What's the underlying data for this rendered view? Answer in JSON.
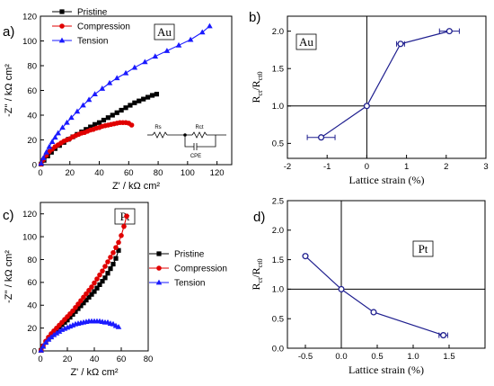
{
  "chart_data": [
    {
      "panel": "a)",
      "type": "scatter",
      "metal": "Au",
      "xlabel": "Z' / kΩ cm²",
      "ylabel": "-Z'' / kΩ cm²",
      "xlim": [
        0,
        130
      ],
      "ylim": [
        0,
        120
      ],
      "xticks": [
        "0",
        "20",
        "40",
        "60",
        "80",
        "100",
        "120"
      ],
      "yticks": [
        "0",
        "20",
        "40",
        "60",
        "80",
        "100",
        "120"
      ],
      "legend": {
        "position": "top-left"
      },
      "circuit": {
        "labels": [
          "Rs",
          "Rct",
          "CPE"
        ]
      },
      "series": [
        {
          "name": "Pristine",
          "color": "#000000",
          "marker": "square",
          "x": [
            0.5,
            2.5,
            5,
            7.5,
            10,
            13,
            16,
            19,
            22,
            25,
            28,
            31,
            34,
            37,
            40,
            43,
            46,
            49,
            52,
            55,
            58,
            61,
            64,
            67,
            70,
            73,
            76,
            79
          ],
          "y": [
            0.5,
            3.5,
            7,
            10,
            13,
            15.5,
            18,
            20.5,
            22.5,
            24.5,
            26.5,
            28.5,
            30.5,
            32.5,
            34,
            36,
            38,
            40,
            42,
            44,
            46,
            48,
            50,
            51.5,
            53,
            54.5,
            56,
            57
          ]
        },
        {
          "name": "Compression",
          "color": "#e00000",
          "marker": "circle",
          "x": [
            0.5,
            2,
            4,
            6,
            8,
            10,
            12,
            14,
            16,
            18,
            20,
            22,
            24,
            26,
            28,
            30,
            32,
            34,
            36,
            38,
            40,
            42,
            44,
            46,
            48,
            50,
            52,
            54,
            56,
            58,
            60,
            62
          ],
          "y": [
            0.5,
            4,
            7.5,
            10.5,
            12.5,
            14.5,
            16,
            17.5,
            19,
            20,
            21,
            22.5,
            23.5,
            24.5,
            25.5,
            26,
            27,
            28,
            28.5,
            29.5,
            30,
            31,
            31.5,
            32,
            32.5,
            33,
            33.5,
            34,
            34,
            34,
            33.5,
            32
          ]
        },
        {
          "name": "Tension",
          "color": "#1a1aff",
          "marker": "triangle",
          "x": [
            0.5,
            2,
            4,
            6,
            8,
            10,
            12,
            15,
            18,
            21,
            25,
            29,
            33,
            37,
            42,
            47,
            52,
            58,
            64,
            71,
            78,
            86,
            94,
            102,
            110,
            115
          ],
          "y": [
            1,
            5.5,
            10,
            14.5,
            18.5,
            22,
            25.5,
            30,
            34,
            38,
            43,
            48,
            52.5,
            57,
            61.5,
            66,
            70,
            74,
            78.5,
            83,
            87.5,
            92,
            96.5,
            101,
            107,
            112
          ]
        }
      ]
    },
    {
      "panel": "b)",
      "type": "line",
      "metal": "Au",
      "xlabel": "Lattice strain (%)",
      "ylabel": "Rct/Rct0",
      "xlim": [
        -2,
        3
      ],
      "ylim": [
        0.3,
        2.2
      ],
      "xticks": [
        "-2",
        "-1",
        "0",
        "1",
        "2",
        "3"
      ],
      "yticks": [
        "0.5",
        "1.0",
        "1.5",
        "2.0"
      ],
      "series": [
        {
          "name": "",
          "color": "#1f1f8f",
          "x": [
            -1.15,
            0,
            0.85,
            2.08
          ],
          "y": [
            0.58,
            1.0,
            1.83,
            2.0
          ],
          "xerr": [
            0.35,
            0,
            0.1,
            0.25
          ]
        }
      ]
    },
    {
      "panel": "c)",
      "type": "scatter",
      "metal": "Pt",
      "xlabel": "Z' / kΩ cm²",
      "ylabel": "-Z'' / kΩ cm²",
      "xlim": [
        0,
        80
      ],
      "ylim": [
        0,
        130
      ],
      "xticks": [
        "0",
        "20",
        "40",
        "60",
        "80"
      ],
      "yticks": [
        "0",
        "20",
        "40",
        "60",
        "80",
        "100",
        "120"
      ],
      "legend": {
        "position": "right"
      },
      "series": [
        {
          "name": "Pristine",
          "color": "#000000",
          "marker": "square",
          "x": [
            0.5,
            2,
            4,
            6,
            8,
            10,
            12,
            14,
            16,
            18,
            20,
            22,
            24,
            26,
            28,
            30,
            32,
            34,
            36,
            38,
            40,
            42,
            44,
            46,
            48,
            50,
            52,
            54,
            56,
            58
          ],
          "y": [
            0.5,
            4,
            7.5,
            10.5,
            13.5,
            16,
            18.5,
            21,
            23,
            25,
            27,
            29.5,
            32,
            34.5,
            37,
            39.5,
            42,
            44.5,
            47,
            49.5,
            52,
            55,
            58,
            61,
            64,
            68,
            72,
            76,
            81,
            88
          ]
        },
        {
          "name": "Compression",
          "color": "#e00000",
          "marker": "circle",
          "x": [
            0.5,
            2,
            4,
            6,
            8,
            10,
            12,
            14,
            16,
            18,
            20,
            22,
            24,
            26,
            28,
            30,
            32,
            34,
            36,
            38,
            40,
            42,
            44,
            46,
            48,
            50,
            52,
            54,
            56,
            58,
            60,
            62,
            64
          ],
          "y": [
            0.5,
            4.5,
            8.5,
            12,
            15,
            17.5,
            20,
            22.5,
            25,
            27.5,
            30,
            32.5,
            35,
            38,
            41,
            44,
            47,
            50,
            53,
            56,
            59.5,
            63,
            66.5,
            70,
            74,
            78,
            82,
            86,
            90.5,
            95,
            101,
            109,
            118
          ]
        },
        {
          "name": "Tension",
          "color": "#1a1aff",
          "marker": "triangle",
          "x": [
            0.5,
            2,
            4,
            6,
            8,
            10,
            12,
            14,
            16,
            18,
            20,
            22,
            24,
            26,
            28,
            30,
            32,
            34,
            36,
            38,
            40,
            42,
            44,
            46,
            48,
            50,
            52,
            54,
            56,
            58
          ],
          "y": [
            0.5,
            4,
            7.5,
            10,
            12,
            14,
            15.5,
            17,
            18.5,
            19.5,
            20.5,
            21.5,
            22.5,
            23.5,
            24,
            24.5,
            25,
            25.5,
            26,
            26,
            26,
            26,
            26,
            25.5,
            25,
            25,
            24,
            23.5,
            22,
            21
          ]
        }
      ]
    },
    {
      "panel": "d)",
      "type": "line",
      "metal": "Pt",
      "xlabel": "Lattice strain (%)",
      "ylabel": "Rct/Rct0",
      "xlim": [
        -0.75,
        2.0
      ],
      "ylim": [
        0,
        2.5
      ],
      "xticks": [
        "-0.5",
        "0.0",
        "0.5",
        "1.0",
        "1.5"
      ],
      "yticks": [
        "0.0",
        "0.5",
        "1.0",
        "1.5",
        "2.0",
        "2.5"
      ],
      "series": [
        {
          "name": "",
          "color": "#1f1f8f",
          "x": [
            -0.5,
            0,
            0.45,
            1.42
          ],
          "y": [
            1.56,
            1.0,
            0.61,
            0.22
          ],
          "xerr": [
            0,
            0,
            0,
            0.06
          ]
        }
      ]
    }
  ]
}
